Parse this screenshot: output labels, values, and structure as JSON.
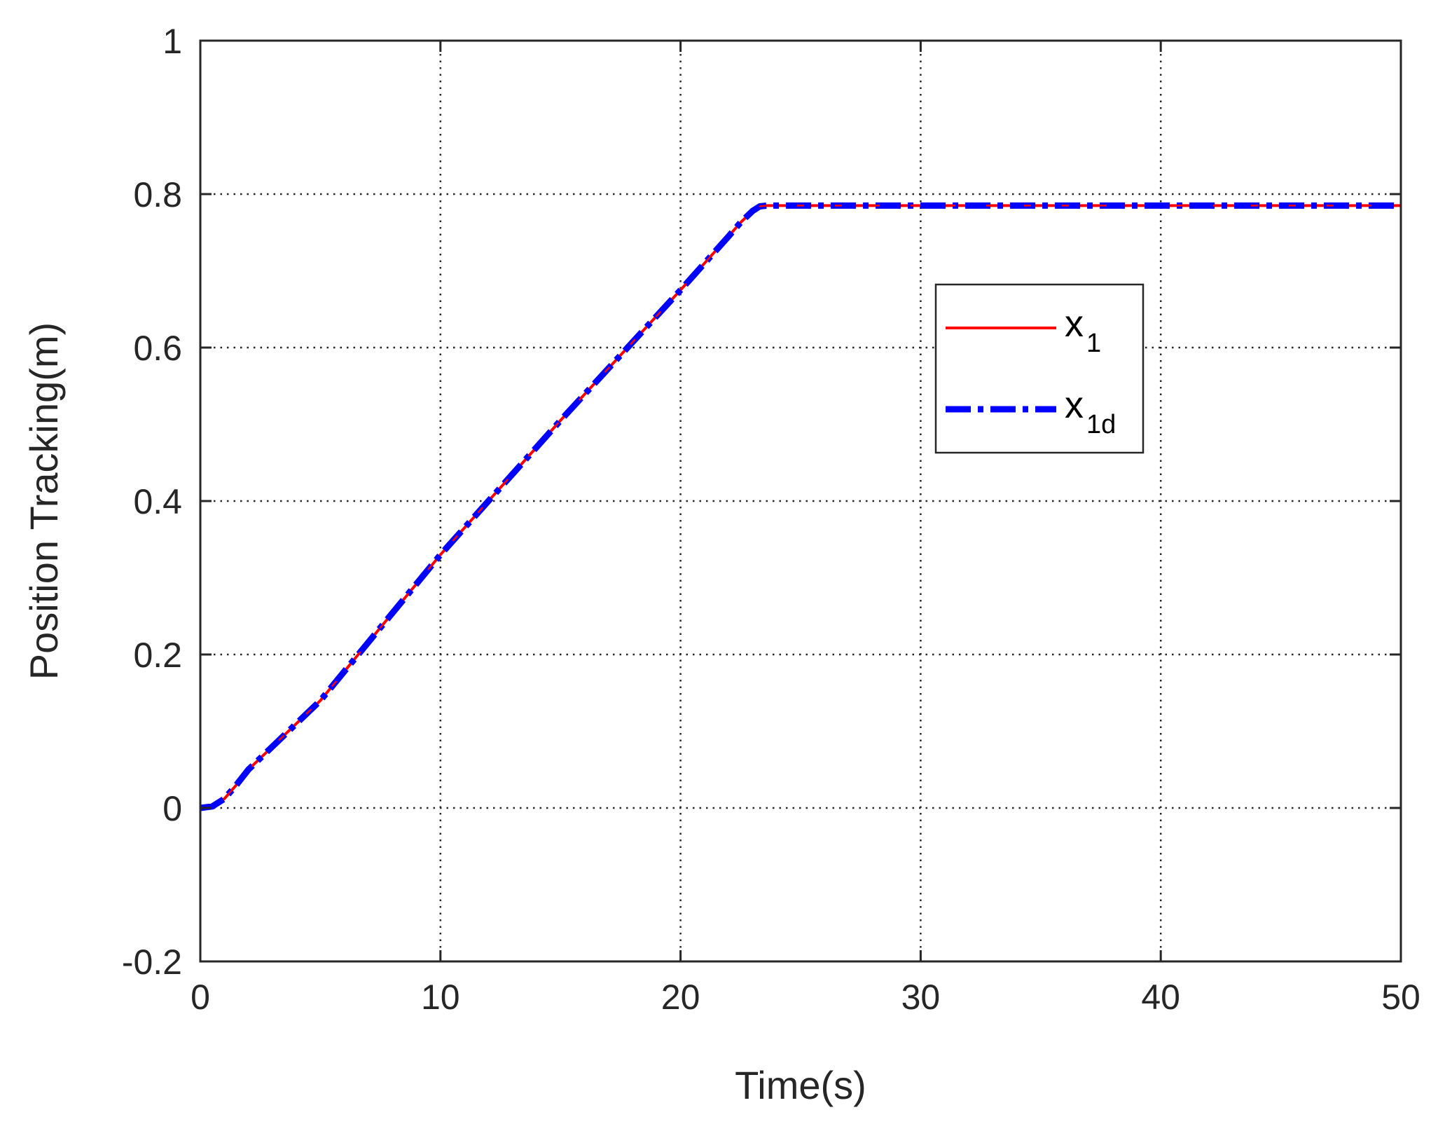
{
  "chart_data": {
    "type": "line",
    "title": "",
    "xlabel": "Time(s)",
    "ylabel": "Position Tracking(m)",
    "xlim": [
      0,
      50
    ],
    "ylim": [
      -0.2,
      1
    ],
    "xticks": [
      0,
      10,
      20,
      30,
      40,
      50
    ],
    "yticks": [
      -0.2,
      0,
      0.2,
      0.4,
      0.6,
      0.8,
      1
    ],
    "xtick_labels": [
      "0",
      "10",
      "20",
      "30",
      "40",
      "50"
    ],
    "ytick_labels": [
      "-0.2",
      "0",
      "0.2",
      "0.4",
      "0.6",
      "0.8",
      "1"
    ],
    "grid": true,
    "legend_position": "upper-right",
    "series": [
      {
        "name": "x_1",
        "legend_base": "x",
        "legend_sub": "1",
        "color": "#ff0000",
        "style": "solid",
        "x": [
          0,
          0.5,
          1,
          1.5,
          2,
          5,
          10,
          15,
          20,
          21,
          22,
          22.5,
          23,
          23.3,
          23.6,
          25,
          30,
          35,
          40,
          45,
          50
        ],
        "y": [
          0,
          0.002,
          0.012,
          0.03,
          0.05,
          0.14,
          0.33,
          0.505,
          0.675,
          0.71,
          0.745,
          0.763,
          0.778,
          0.784,
          0.785,
          0.785,
          0.785,
          0.785,
          0.785,
          0.785,
          0.785
        ]
      },
      {
        "name": "x_1d",
        "legend_base": "x",
        "legend_sub": "1d",
        "color": "#0000ff",
        "style": "dashdot",
        "x": [
          0,
          0.5,
          1,
          1.5,
          2,
          5,
          10,
          15,
          20,
          21,
          22,
          22.5,
          23,
          23.3,
          23.6,
          25,
          30,
          35,
          40,
          45,
          50
        ],
        "y": [
          0,
          0.002,
          0.012,
          0.03,
          0.05,
          0.14,
          0.33,
          0.505,
          0.675,
          0.71,
          0.745,
          0.763,
          0.778,
          0.784,
          0.785,
          0.785,
          0.785,
          0.785,
          0.785,
          0.785,
          0.785
        ]
      }
    ]
  }
}
